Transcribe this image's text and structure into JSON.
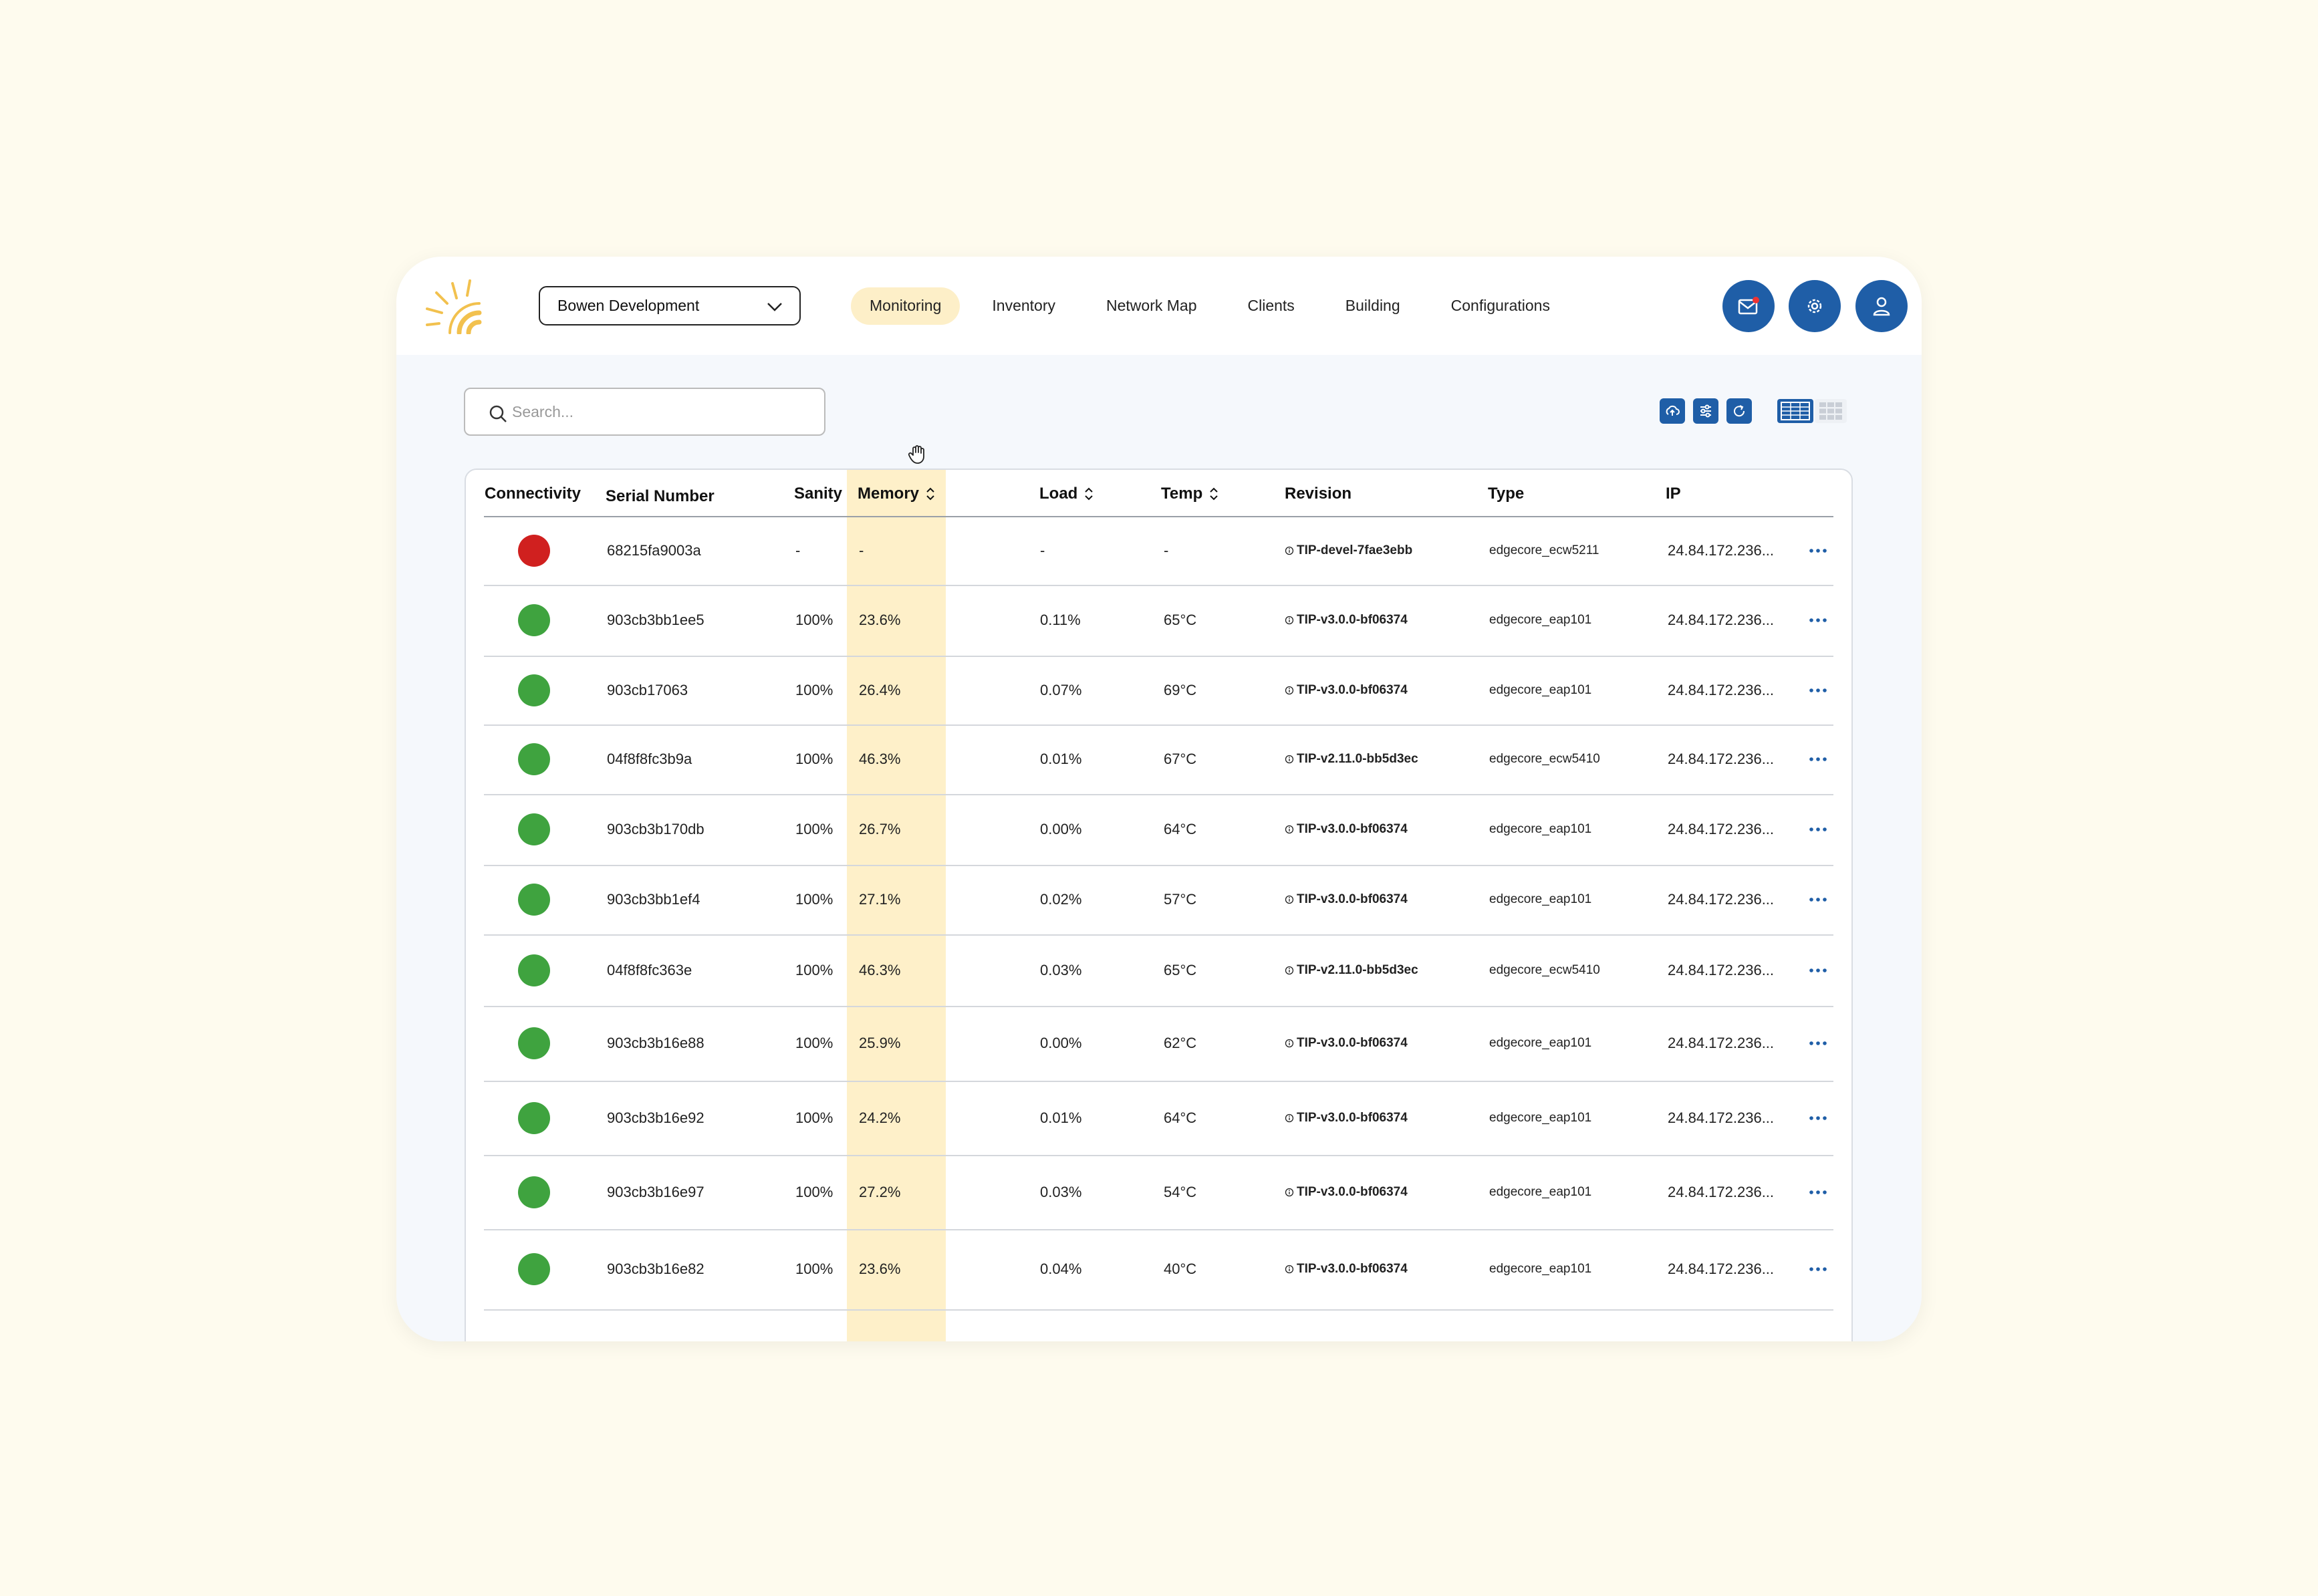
{
  "header": {
    "org_selector": "Bowen Development",
    "nav": [
      "Monitoring",
      "Inventory",
      "Network Map",
      "Clients",
      "Building",
      "Configurations"
    ],
    "active_nav": "Monitoring"
  },
  "search": {
    "placeholder": "Search..."
  },
  "colors": {
    "accent": "#1f5ea7",
    "highlight_column": "#fef0c9",
    "active_tab": "#fdefc8",
    "status_online": "#3fa33f",
    "status_offline": "#d0201f",
    "logo": "#f2c14e"
  },
  "table": {
    "columns": [
      "Connectivity",
      "Serial Number",
      "Sanity",
      "Memory",
      "Load",
      "Temp",
      "Revision",
      "Type",
      "IP"
    ],
    "rows": [
      {
        "status": "offline",
        "serial": "68215fa9003a",
        "sanity": "-",
        "memory": "-",
        "load": "-",
        "temp": "-",
        "revision": "TIP-devel-7fae3ebb",
        "type": "edgecore_ecw5211",
        "ip": "24.84.172.236..."
      },
      {
        "status": "online",
        "serial": "903cb3bb1ee5",
        "sanity": "100%",
        "memory": "23.6%",
        "load": "0.11%",
        "temp": "65°C",
        "revision": "TIP-v3.0.0-bf06374",
        "type": "edgecore_eap101",
        "ip": "24.84.172.236..."
      },
      {
        "status": "online",
        "serial": "903cb17063",
        "sanity": "100%",
        "memory": "26.4%",
        "load": "0.07%",
        "temp": "69°C",
        "revision": "TIP-v3.0.0-bf06374",
        "type": "edgecore_eap101",
        "ip": "24.84.172.236..."
      },
      {
        "status": "online",
        "serial": "04f8f8fc3b9a",
        "sanity": "100%",
        "memory": "46.3%",
        "load": "0.01%",
        "temp": "67°C",
        "revision": "TIP-v2.11.0-bb5d3ec",
        "type": "edgecore_ecw5410",
        "ip": "24.84.172.236..."
      },
      {
        "status": "online",
        "serial": "903cb3b170db",
        "sanity": "100%",
        "memory": "26.7%",
        "load": "0.00%",
        "temp": "64°C",
        "revision": "TIP-v3.0.0-bf06374",
        "type": "edgecore_eap101",
        "ip": "24.84.172.236..."
      },
      {
        "status": "online",
        "serial": "903cb3bb1ef4",
        "sanity": "100%",
        "memory": "27.1%",
        "load": "0.02%",
        "temp": "57°C",
        "revision": "TIP-v3.0.0-bf06374",
        "type": "edgecore_eap101",
        "ip": "24.84.172.236..."
      },
      {
        "status": "online",
        "serial": "04f8f8fc363e",
        "sanity": "100%",
        "memory": "46.3%",
        "load": "0.03%",
        "temp": "65°C",
        "revision": "TIP-v2.11.0-bb5d3ec",
        "type": "edgecore_ecw5410",
        "ip": "24.84.172.236..."
      },
      {
        "status": "online",
        "serial": "903cb3b16e88",
        "sanity": "100%",
        "memory": "25.9%",
        "load": "0.00%",
        "temp": "62°C",
        "revision": "TIP-v3.0.0-bf06374",
        "type": "edgecore_eap101",
        "ip": "24.84.172.236..."
      },
      {
        "status": "online",
        "serial": "903cb3b16e92",
        "sanity": "100%",
        "memory": "24.2%",
        "load": "0.01%",
        "temp": "64°C",
        "revision": "TIP-v3.0.0-bf06374",
        "type": "edgecore_eap101",
        "ip": "24.84.172.236..."
      },
      {
        "status": "online",
        "serial": "903cb3b16e97",
        "sanity": "100%",
        "memory": "27.2%",
        "load": "0.03%",
        "temp": "54°C",
        "revision": "TIP-v3.0.0-bf06374",
        "type": "edgecore_eap101",
        "ip": "24.84.172.236..."
      },
      {
        "status": "online",
        "serial": "903cb3b16e82",
        "sanity": "100%",
        "memory": "23.6%",
        "load": "0.04%",
        "temp": "40°C",
        "revision": "TIP-v3.0.0-bf06374",
        "type": "edgecore_eap101",
        "ip": "24.84.172.236..."
      }
    ]
  }
}
